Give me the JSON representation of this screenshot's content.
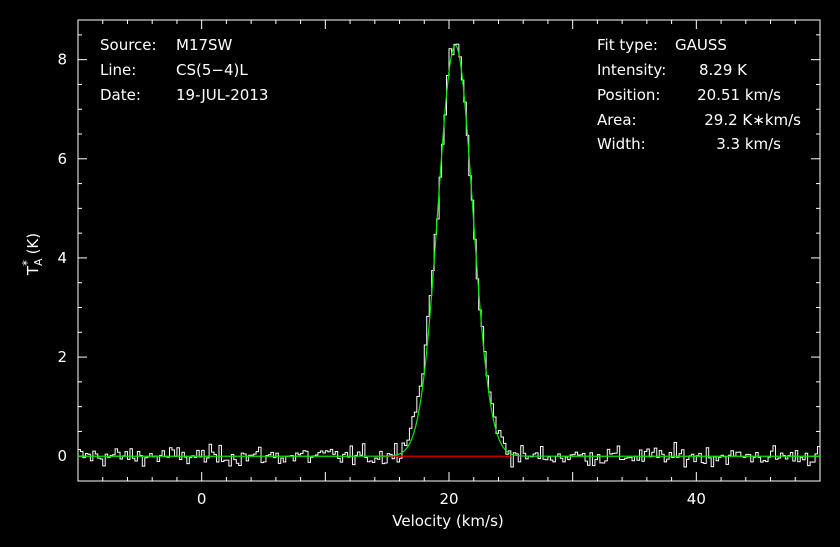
{
  "chart_data": {
    "type": "line",
    "xlabel": "Velocity (km/s)",
    "ylabel": "T",
    "ylabel_sub": "A",
    "ylabel_sup": "*",
    "ylabel_unit": "(K)",
    "xlim": [
      -10,
      50
    ],
    "ylim": [
      -0.5,
      8.8
    ],
    "x_ticks": [
      0,
      20,
      40
    ],
    "y_ticks": [
      0,
      2,
      4,
      6,
      8
    ],
    "header_left": [
      {
        "key": "Source:",
        "value": "M17SW"
      },
      {
        "key": "Line:",
        "value": "CS(5−4)L"
      },
      {
        "key": "Date:",
        "value": "19-JUL-2013"
      }
    ],
    "header_right": [
      {
        "key": "Fit type:",
        "value": "GAUSS"
      },
      {
        "key": "Intensity:",
        "value": "8.29 K"
      },
      {
        "key": "Position:",
        "value": "20.51 km/s"
      },
      {
        "key": "Area:",
        "value": "29.2 K∗km/s"
      },
      {
        "key": "Width:",
        "value": "3.3 km/s"
      }
    ],
    "fit": {
      "amplitude": 8.29,
      "center": 20.51,
      "fwhm": 3.3
    },
    "baseline": {
      "x0": 14.0,
      "x1": 25.0,
      "y": 0.0
    },
    "spectrum_step": 0.2,
    "noise_rms": 0.1,
    "colors": {
      "background": "#000000",
      "axes": "#ffffff",
      "spectrum": "#ffffff",
      "fit": "#00ee00",
      "baseline": "#dd0000"
    }
  }
}
